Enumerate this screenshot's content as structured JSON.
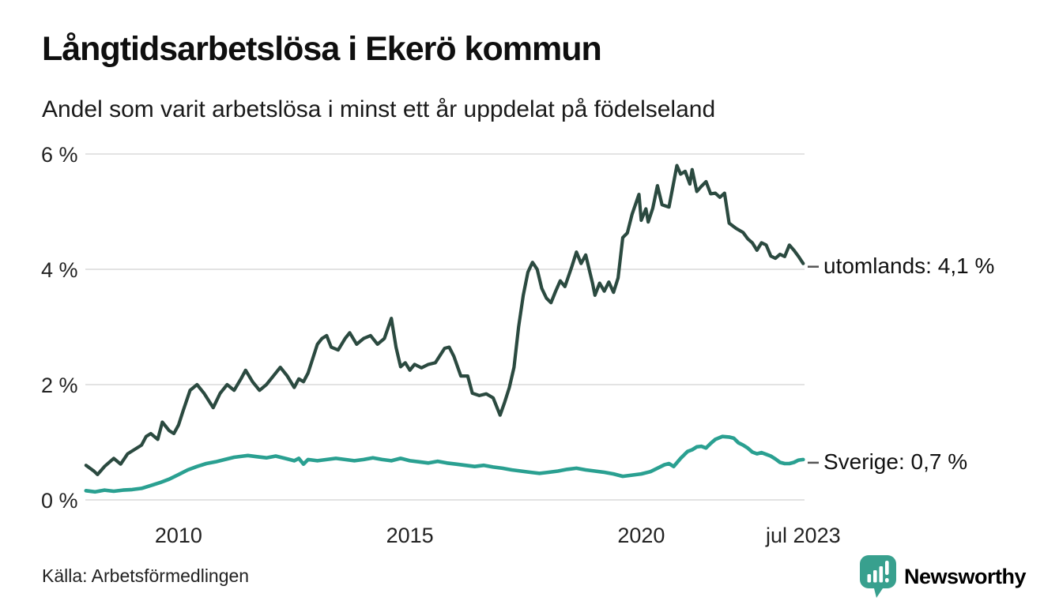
{
  "header": {
    "title": "Långtidsarbetslösa i Ekerö kommun",
    "subtitle": "Andel som varit arbetslösa i minst ett år uppdelat på födelseland"
  },
  "footer": {
    "source": "Källa: Arbetsförmedlingen",
    "brand_name": "Newsworthy",
    "brand_color": "#38a08e"
  },
  "chart_data": {
    "type": "line",
    "title": "Långtidsarbetslösa i Ekerö kommun",
    "xlabel": "",
    "ylabel": "",
    "grid": true,
    "grid_color": "#e3e3e3",
    "connector_color": "#555555",
    "x_axis": {
      "range": [
        2008.0,
        2023.58
      ],
      "ticks": [
        {
          "label": "2010",
          "year": 2010
        },
        {
          "label": "2015",
          "year": 2015
        },
        {
          "label": "2020",
          "year": 2020
        },
        {
          "label": "jul 2023",
          "year": 2023.5
        }
      ]
    },
    "y_axis": {
      "range": [
        0,
        6.2
      ],
      "ticks": [
        {
          "label": "0 %",
          "value": 0
        },
        {
          "label": "2 %",
          "value": 2
        },
        {
          "label": "4 %",
          "value": 4
        },
        {
          "label": "6 %",
          "value": 6
        }
      ]
    },
    "series": [
      {
        "name": "utomlands",
        "label": "utomlands: 4,1 %",
        "last_value_text": "4,1 %",
        "color": "#2b4a40",
        "stroke_width": 4.2,
        "points": [
          [
            2008.0,
            0.6
          ],
          [
            2008.17,
            0.5
          ],
          [
            2008.25,
            0.44
          ],
          [
            2008.4,
            0.58
          ],
          [
            2008.6,
            0.72
          ],
          [
            2008.75,
            0.62
          ],
          [
            2008.9,
            0.8
          ],
          [
            2009.0,
            0.85
          ],
          [
            2009.2,
            0.95
          ],
          [
            2009.3,
            1.1
          ],
          [
            2009.4,
            1.15
          ],
          [
            2009.55,
            1.05
          ],
          [
            2009.65,
            1.35
          ],
          [
            2009.8,
            1.2
          ],
          [
            2009.9,
            1.15
          ],
          [
            2010.0,
            1.3
          ],
          [
            2010.1,
            1.55
          ],
          [
            2010.25,
            1.9
          ],
          [
            2010.4,
            2.0
          ],
          [
            2010.55,
            1.85
          ],
          [
            2010.75,
            1.6
          ],
          [
            2010.9,
            1.85
          ],
          [
            2011.05,
            2.0
          ],
          [
            2011.2,
            1.9
          ],
          [
            2011.35,
            2.1
          ],
          [
            2011.45,
            2.25
          ],
          [
            2011.6,
            2.05
          ],
          [
            2011.75,
            1.9
          ],
          [
            2011.9,
            2.0
          ],
          [
            2012.05,
            2.15
          ],
          [
            2012.2,
            2.3
          ],
          [
            2012.35,
            2.15
          ],
          [
            2012.5,
            1.95
          ],
          [
            2012.6,
            2.1
          ],
          [
            2012.7,
            2.05
          ],
          [
            2012.8,
            2.2
          ],
          [
            2012.9,
            2.45
          ],
          [
            2013.0,
            2.7
          ],
          [
            2013.1,
            2.8
          ],
          [
            2013.2,
            2.85
          ],
          [
            2013.3,
            2.65
          ],
          [
            2013.45,
            2.6
          ],
          [
            2013.6,
            2.8
          ],
          [
            2013.7,
            2.9
          ],
          [
            2013.85,
            2.7
          ],
          [
            2014.0,
            2.8
          ],
          [
            2014.15,
            2.85
          ],
          [
            2014.3,
            2.7
          ],
          [
            2014.45,
            2.8
          ],
          [
            2014.6,
            3.15
          ],
          [
            2014.7,
            2.65
          ],
          [
            2014.8,
            2.31
          ],
          [
            2014.9,
            2.38
          ],
          [
            2015.0,
            2.25
          ],
          [
            2015.1,
            2.35
          ],
          [
            2015.25,
            2.29
          ],
          [
            2015.4,
            2.35
          ],
          [
            2015.55,
            2.38
          ],
          [
            2015.75,
            2.63
          ],
          [
            2015.85,
            2.65
          ],
          [
            2015.95,
            2.49
          ],
          [
            2016.1,
            2.15
          ],
          [
            2016.25,
            2.15
          ],
          [
            2016.35,
            1.85
          ],
          [
            2016.5,
            1.81
          ],
          [
            2016.65,
            1.84
          ],
          [
            2016.8,
            1.77
          ],
          [
            2016.95,
            1.47
          ],
          [
            2017.05,
            1.7
          ],
          [
            2017.15,
            1.95
          ],
          [
            2017.25,
            2.3
          ],
          [
            2017.35,
            3.0
          ],
          [
            2017.45,
            3.55
          ],
          [
            2017.55,
            3.95
          ],
          [
            2017.65,
            4.12
          ],
          [
            2017.75,
            4.0
          ],
          [
            2017.85,
            3.67
          ],
          [
            2017.95,
            3.5
          ],
          [
            2018.05,
            3.42
          ],
          [
            2018.15,
            3.62
          ],
          [
            2018.25,
            3.8
          ],
          [
            2018.35,
            3.7
          ],
          [
            2018.5,
            4.05
          ],
          [
            2018.6,
            4.3
          ],
          [
            2018.7,
            4.1
          ],
          [
            2018.8,
            4.25
          ],
          [
            2018.95,
            3.75
          ],
          [
            2019.0,
            3.55
          ],
          [
            2019.1,
            3.76
          ],
          [
            2019.2,
            3.62
          ],
          [
            2019.3,
            3.78
          ],
          [
            2019.4,
            3.6
          ],
          [
            2019.5,
            3.85
          ],
          [
            2019.6,
            4.55
          ],
          [
            2019.7,
            4.63
          ],
          [
            2019.8,
            4.95
          ],
          [
            2019.95,
            5.3
          ],
          [
            2020.0,
            4.85
          ],
          [
            2020.1,
            5.05
          ],
          [
            2020.15,
            4.82
          ],
          [
            2020.25,
            5.06
          ],
          [
            2020.35,
            5.45
          ],
          [
            2020.45,
            5.12
          ],
          [
            2020.6,
            5.08
          ],
          [
            2020.77,
            5.8
          ],
          [
            2020.85,
            5.65
          ],
          [
            2020.95,
            5.7
          ],
          [
            2021.05,
            5.48
          ],
          [
            2021.1,
            5.73
          ],
          [
            2021.2,
            5.35
          ],
          [
            2021.3,
            5.44
          ],
          [
            2021.4,
            5.52
          ],
          [
            2021.5,
            5.31
          ],
          [
            2021.6,
            5.32
          ],
          [
            2021.7,
            5.25
          ],
          [
            2021.8,
            5.32
          ],
          [
            2021.9,
            4.8
          ],
          [
            2022.05,
            4.71
          ],
          [
            2022.2,
            4.64
          ],
          [
            2022.3,
            4.53
          ],
          [
            2022.4,
            4.46
          ],
          [
            2022.5,
            4.33
          ],
          [
            2022.6,
            4.46
          ],
          [
            2022.7,
            4.42
          ],
          [
            2022.8,
            4.23
          ],
          [
            2022.9,
            4.19
          ],
          [
            2023.0,
            4.26
          ],
          [
            2023.1,
            4.22
          ],
          [
            2023.2,
            4.42
          ],
          [
            2023.3,
            4.33
          ],
          [
            2023.4,
            4.22
          ],
          [
            2023.5,
            4.1
          ]
        ]
      },
      {
        "name": "Sverige",
        "label": "Sverige: 0,7 %",
        "last_value_text": "0,7 %",
        "color": "#2aa091",
        "stroke_width": 4.6,
        "points": [
          [
            2008.0,
            0.16
          ],
          [
            2008.2,
            0.14
          ],
          [
            2008.4,
            0.17
          ],
          [
            2008.6,
            0.15
          ],
          [
            2008.8,
            0.17
          ],
          [
            2009.0,
            0.18
          ],
          [
            2009.2,
            0.2
          ],
          [
            2009.4,
            0.25
          ],
          [
            2009.6,
            0.3
          ],
          [
            2009.8,
            0.36
          ],
          [
            2010.0,
            0.44
          ],
          [
            2010.2,
            0.52
          ],
          [
            2010.4,
            0.58
          ],
          [
            2010.6,
            0.63
          ],
          [
            2010.8,
            0.66
          ],
          [
            2011.0,
            0.7
          ],
          [
            2011.2,
            0.74
          ],
          [
            2011.4,
            0.76
          ],
          [
            2011.5,
            0.77
          ],
          [
            2011.7,
            0.75
          ],
          [
            2011.9,
            0.73
          ],
          [
            2012.1,
            0.76
          ],
          [
            2012.3,
            0.72
          ],
          [
            2012.5,
            0.68
          ],
          [
            2012.6,
            0.72
          ],
          [
            2012.7,
            0.62
          ],
          [
            2012.8,
            0.7
          ],
          [
            2013.0,
            0.68
          ],
          [
            2013.2,
            0.7
          ],
          [
            2013.4,
            0.72
          ],
          [
            2013.6,
            0.7
          ],
          [
            2013.8,
            0.68
          ],
          [
            2014.0,
            0.7
          ],
          [
            2014.2,
            0.73
          ],
          [
            2014.4,
            0.7
          ],
          [
            2014.6,
            0.68
          ],
          [
            2014.8,
            0.72
          ],
          [
            2015.0,
            0.68
          ],
          [
            2015.2,
            0.66
          ],
          [
            2015.4,
            0.64
          ],
          [
            2015.6,
            0.67
          ],
          [
            2015.8,
            0.64
          ],
          [
            2016.0,
            0.62
          ],
          [
            2016.2,
            0.6
          ],
          [
            2016.4,
            0.58
          ],
          [
            2016.6,
            0.6
          ],
          [
            2016.8,
            0.57
          ],
          [
            2017.0,
            0.55
          ],
          [
            2017.2,
            0.52
          ],
          [
            2017.4,
            0.5
          ],
          [
            2017.6,
            0.48
          ],
          [
            2017.8,
            0.46
          ],
          [
            2018.0,
            0.48
          ],
          [
            2018.2,
            0.5
          ],
          [
            2018.4,
            0.53
          ],
          [
            2018.6,
            0.55
          ],
          [
            2018.8,
            0.52
          ],
          [
            2019.0,
            0.5
          ],
          [
            2019.2,
            0.48
          ],
          [
            2019.4,
            0.45
          ],
          [
            2019.5,
            0.43
          ],
          [
            2019.6,
            0.41
          ],
          [
            2019.8,
            0.43
          ],
          [
            2020.0,
            0.45
          ],
          [
            2020.2,
            0.49
          ],
          [
            2020.4,
            0.57
          ],
          [
            2020.5,
            0.61
          ],
          [
            2020.6,
            0.63
          ],
          [
            2020.7,
            0.58
          ],
          [
            2020.85,
            0.72
          ],
          [
            2021.0,
            0.84
          ],
          [
            2021.1,
            0.87
          ],
          [
            2021.2,
            0.92
          ],
          [
            2021.3,
            0.93
          ],
          [
            2021.4,
            0.9
          ],
          [
            2021.5,
            0.98
          ],
          [
            2021.6,
            1.05
          ],
          [
            2021.75,
            1.1
          ],
          [
            2021.9,
            1.09
          ],
          [
            2022.0,
            1.07
          ],
          [
            2022.1,
            0.99
          ],
          [
            2022.2,
            0.95
          ],
          [
            2022.3,
            0.9
          ],
          [
            2022.4,
            0.83
          ],
          [
            2022.5,
            0.8
          ],
          [
            2022.6,
            0.82
          ],
          [
            2022.7,
            0.79
          ],
          [
            2022.8,
            0.76
          ],
          [
            2022.9,
            0.71
          ],
          [
            2023.0,
            0.65
          ],
          [
            2023.1,
            0.63
          ],
          [
            2023.2,
            0.63
          ],
          [
            2023.3,
            0.65
          ],
          [
            2023.4,
            0.69
          ],
          [
            2023.5,
            0.7
          ]
        ]
      }
    ],
    "legend_position": "right-of-line-ends"
  }
}
